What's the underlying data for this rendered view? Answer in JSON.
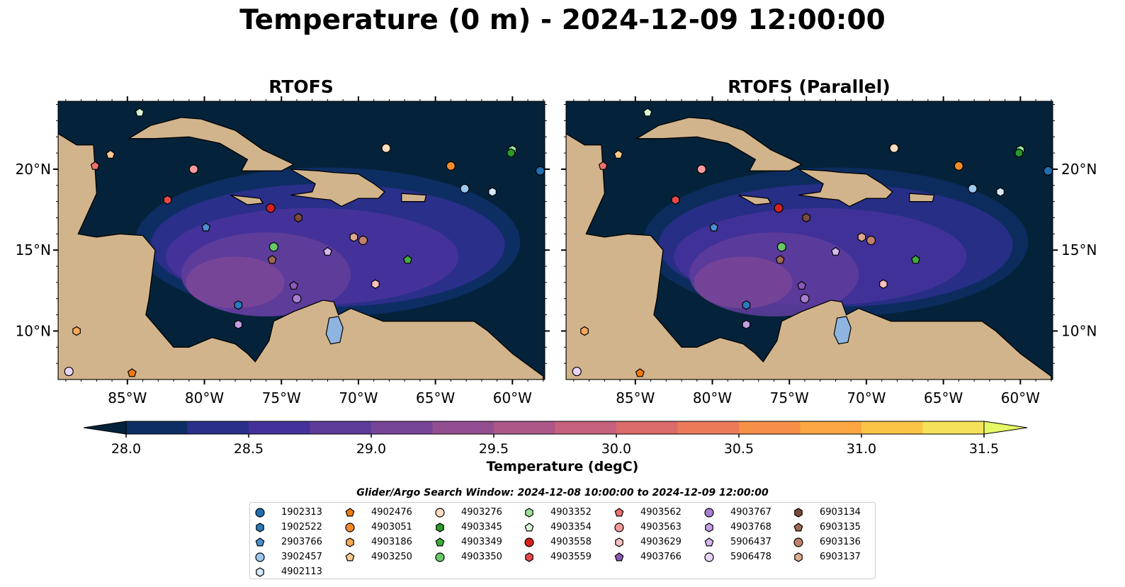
{
  "title": "Temperature (0 m) - 2024-12-09 12:00:00",
  "panels": [
    {
      "title": "RTOFS"
    },
    {
      "title": "RTOFS (Parallel)"
    }
  ],
  "axes": {
    "lon_ticks": [
      "85°W",
      "80°W",
      "75°W",
      "70°W",
      "65°W",
      "60°W"
    ],
    "lat_ticks": [
      "20°N",
      "15°N",
      "10°N"
    ]
  },
  "colorbar": {
    "label": "Temperature (degC)",
    "ticks": [
      "28.0",
      "28.5",
      "29.0",
      "29.5",
      "30.0",
      "30.5",
      "31.0",
      "31.5"
    ],
    "colors": [
      "#04233a",
      "#0d2e63",
      "#2a2f8a",
      "#44329a",
      "#5d3c9a",
      "#774597",
      "#924e90",
      "#ac5787",
      "#c5617c",
      "#db6a6a",
      "#ec7a58",
      "#f68f48",
      "#fba642",
      "#fcc447",
      "#f5e25a",
      "#e5f866"
    ]
  },
  "colors": {
    "land": "#d2b48c",
    "ocean_deep": "#04233a",
    "water_body": "#8fb4e0"
  },
  "search_window": "Glider/Argo Search Window: 2024-12-08 10:00:00 to 2024-12-09 12:00:00",
  "legend": [
    {
      "label": "1902313",
      "color": "#1f6eb0",
      "shape": "circle"
    },
    {
      "label": "1902522",
      "color": "#2a7ac0",
      "shape": "hexagon"
    },
    {
      "label": "2903766",
      "color": "#4a8fd0",
      "shape": "pentagon"
    },
    {
      "label": "3902457",
      "color": "#9ec8ee",
      "shape": "circle"
    },
    {
      "label": "4902113",
      "color": "#d6e9f8",
      "shape": "hexagon"
    },
    {
      "label": "4902476",
      "color": "#f07a10",
      "shape": "pentagon"
    },
    {
      "label": "4903051",
      "color": "#f58a2a",
      "shape": "circle"
    },
    {
      "label": "4903186",
      "color": "#f8a85a",
      "shape": "hexagon"
    },
    {
      "label": "4903250",
      "color": "#fcc890",
      "shape": "pentagon"
    },
    {
      "label": "4903276",
      "color": "#fddcc0",
      "shape": "circle"
    },
    {
      "label": "4903345",
      "color": "#2a9a2a",
      "shape": "hexagon"
    },
    {
      "label": "4903349",
      "color": "#3cae3c",
      "shape": "pentagon"
    },
    {
      "label": "4903350",
      "color": "#66c866",
      "shape": "circle"
    },
    {
      "label": "4903352",
      "color": "#9ae09a",
      "shape": "hexagon"
    },
    {
      "label": "4903354",
      "color": "#d6f7d2",
      "shape": "pentagon"
    },
    {
      "label": "4903558",
      "color": "#d62020",
      "shape": "circle"
    },
    {
      "label": "4903559",
      "color": "#e84848",
      "shape": "hexagon"
    },
    {
      "label": "4903562",
      "color": "#f07070",
      "shape": "pentagon"
    },
    {
      "label": "4903563",
      "color": "#f59a9a",
      "shape": "circle"
    },
    {
      "label": "4903629",
      "color": "#f8c0c0",
      "shape": "hexagon"
    },
    {
      "label": "4903766",
      "color": "#8a5ab8",
      "shape": "pentagon"
    },
    {
      "label": "4903767",
      "color": "#a67ed0",
      "shape": "circle"
    },
    {
      "label": "4903768",
      "color": "#c29ee2",
      "shape": "hexagon"
    },
    {
      "label": "5906437",
      "color": "#d6b8f0",
      "shape": "pentagon"
    },
    {
      "label": "5906478",
      "color": "#e8d4f8",
      "shape": "circle"
    },
    {
      "label": "6903134",
      "color": "#7a4a3a",
      "shape": "hexagon"
    },
    {
      "label": "6903135",
      "color": "#a06a52",
      "shape": "pentagon"
    },
    {
      "label": "6903136",
      "color": "#c0806a",
      "shape": "circle"
    },
    {
      "label": "6903137",
      "color": "#e0a890",
      "shape": "hexagon"
    }
  ],
  "markers": [
    {
      "id": "4903354",
      "lon": -84.2,
      "lat": 23.5
    },
    {
      "id": "4903250",
      "lon": -86.1,
      "lat": 20.9
    },
    {
      "id": "4903562",
      "lon": -87.1,
      "lat": 20.2
    },
    {
      "id": "4903563",
      "lon": -80.7,
      "lat": 20.0
    },
    {
      "id": "4903559",
      "lon": -82.4,
      "lat": 18.1
    },
    {
      "id": "4903558",
      "lon": -75.7,
      "lat": 17.6
    },
    {
      "id": "2903766",
      "lon": -79.9,
      "lat": 16.4
    },
    {
      "id": "6903134",
      "lon": -73.9,
      "lat": 17.0
    },
    {
      "id": "4903350",
      "lon": -75.5,
      "lat": 15.2
    },
    {
      "id": "6903135",
      "lon": -75.6,
      "lat": 14.4
    },
    {
      "id": "4903276",
      "lon": -68.2,
      "lat": 21.3
    },
    {
      "id": "4903051",
      "lon": -64.0,
      "lat": 20.2
    },
    {
      "id": "3902457",
      "lon": -63.1,
      "lat": 18.8
    },
    {
      "id": "4902113",
      "lon": -61.3,
      "lat": 18.6
    },
    {
      "id": "4903352",
      "lon": -60.0,
      "lat": 21.2
    },
    {
      "id": "4903345",
      "lon": -60.1,
      "lat": 21.0
    },
    {
      "id": "1902313",
      "lon": -58.2,
      "lat": 19.9
    },
    {
      "id": "6903137",
      "lon": -70.3,
      "lat": 15.8
    },
    {
      "id": "6903136",
      "lon": -69.7,
      "lat": 15.6
    },
    {
      "id": "5906437",
      "lon": -72.0,
      "lat": 14.9
    },
    {
      "id": "4903349",
      "lon": -66.8,
      "lat": 14.4
    },
    {
      "id": "4903766",
      "lon": -74.2,
      "lat": 12.8
    },
    {
      "id": "4903767",
      "lon": -74.0,
      "lat": 12.0
    },
    {
      "id": "4903629",
      "lon": -68.9,
      "lat": 12.9
    },
    {
      "id": "1902522",
      "lon": -77.8,
      "lat": 11.6
    },
    {
      "id": "4903768",
      "lon": -77.8,
      "lat": 10.4
    },
    {
      "id": "4903186",
      "lon": -88.3,
      "lat": 10.0
    },
    {
      "id": "5906478",
      "lon": -88.8,
      "lat": 7.5
    },
    {
      "id": "4902476",
      "lon": -84.7,
      "lat": 7.4
    }
  ]
}
